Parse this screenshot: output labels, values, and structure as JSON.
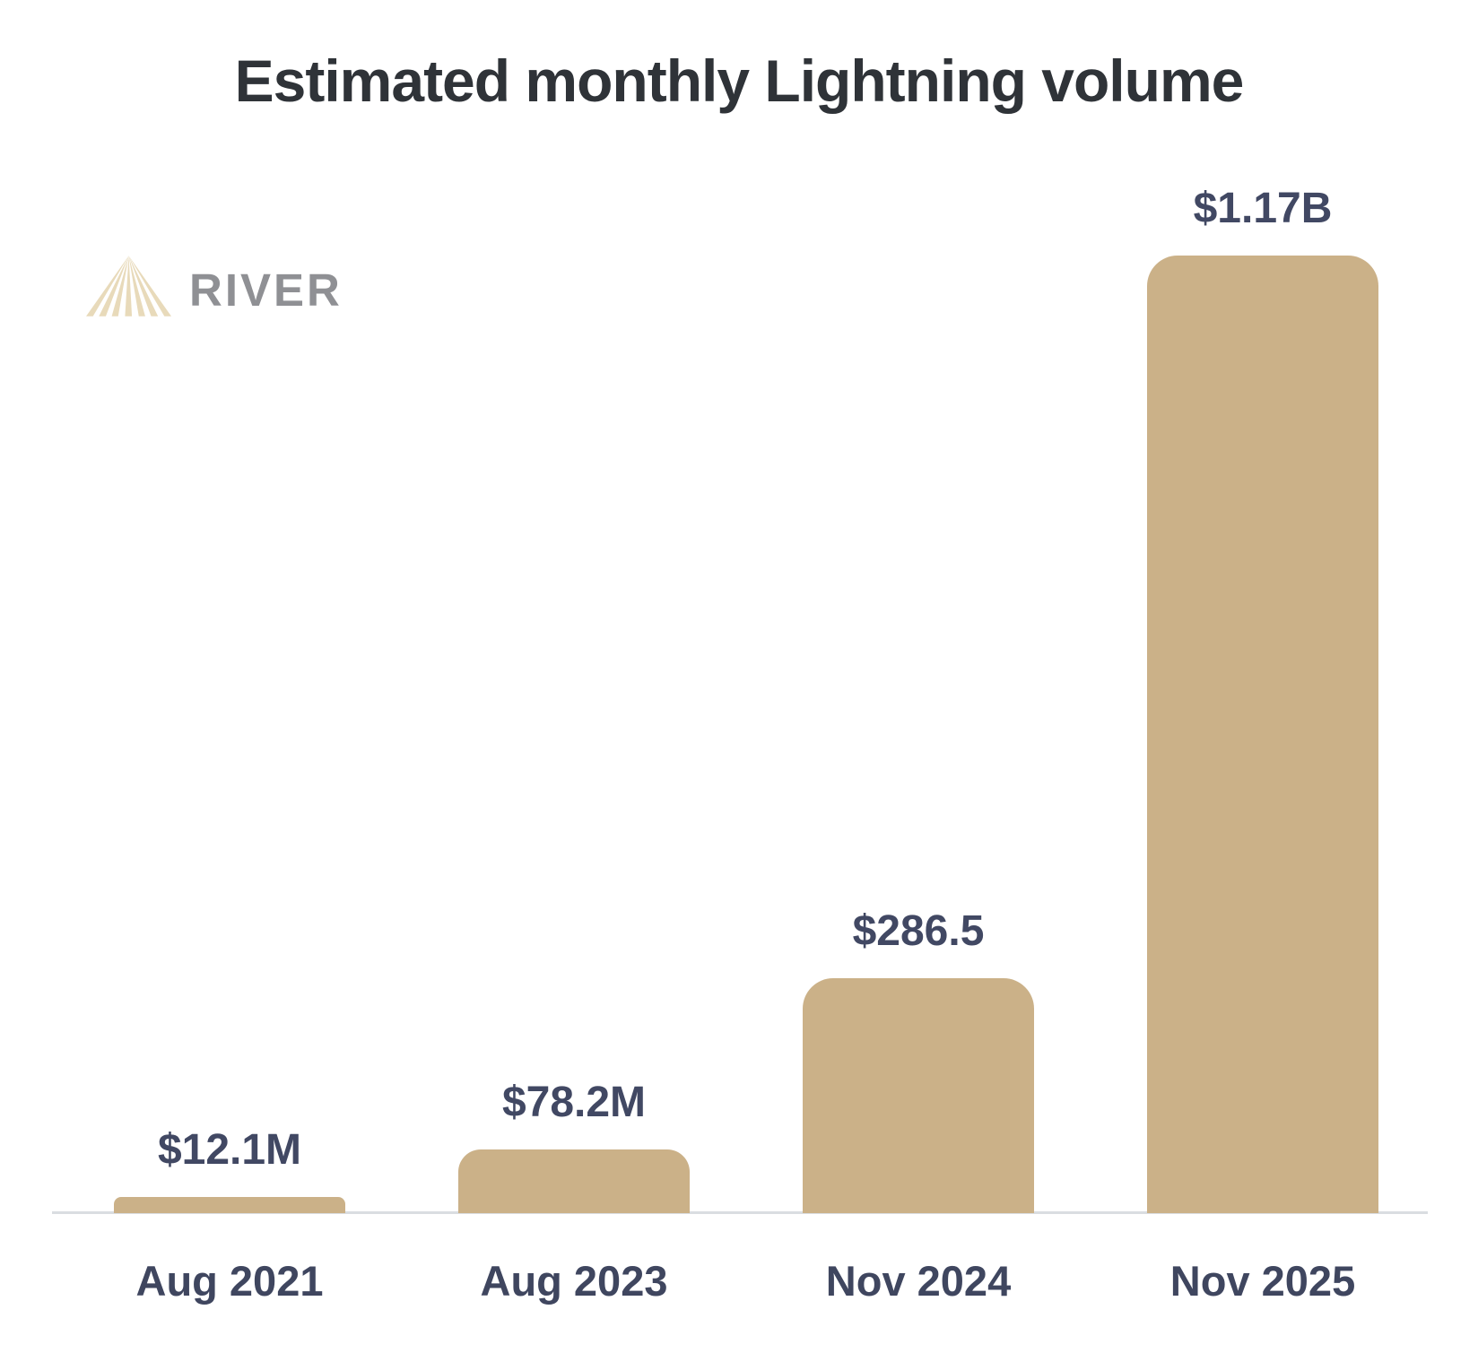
{
  "branding": {
    "logo_text": "RIVER",
    "logo_mark": "river-rays-triangle-icon",
    "logo_mark_color": "#E8DABA",
    "logo_text_color": "#8F9094"
  },
  "chart_data": {
    "type": "bar",
    "title": "Estimated monthly Lightning volume",
    "categories": [
      "Aug 2021",
      "Aug 2023",
      "Nov 2024",
      "Nov 2025"
    ],
    "values_usd_millions": [
      12.1,
      78.2,
      286.5,
      1170
    ],
    "value_labels": [
      "$12.1M",
      "$78.2M",
      "$286.5",
      "$1.17B"
    ],
    "xlabel": "",
    "ylabel": "",
    "ylim": [
      0,
      1250
    ],
    "grid": false,
    "legend": false,
    "bar_color": "#CBB188",
    "value_label_color": "#414863",
    "axis_label_color": "#3F465F",
    "title_color": "#2F3338",
    "baseline_color": "#DADDE1"
  }
}
